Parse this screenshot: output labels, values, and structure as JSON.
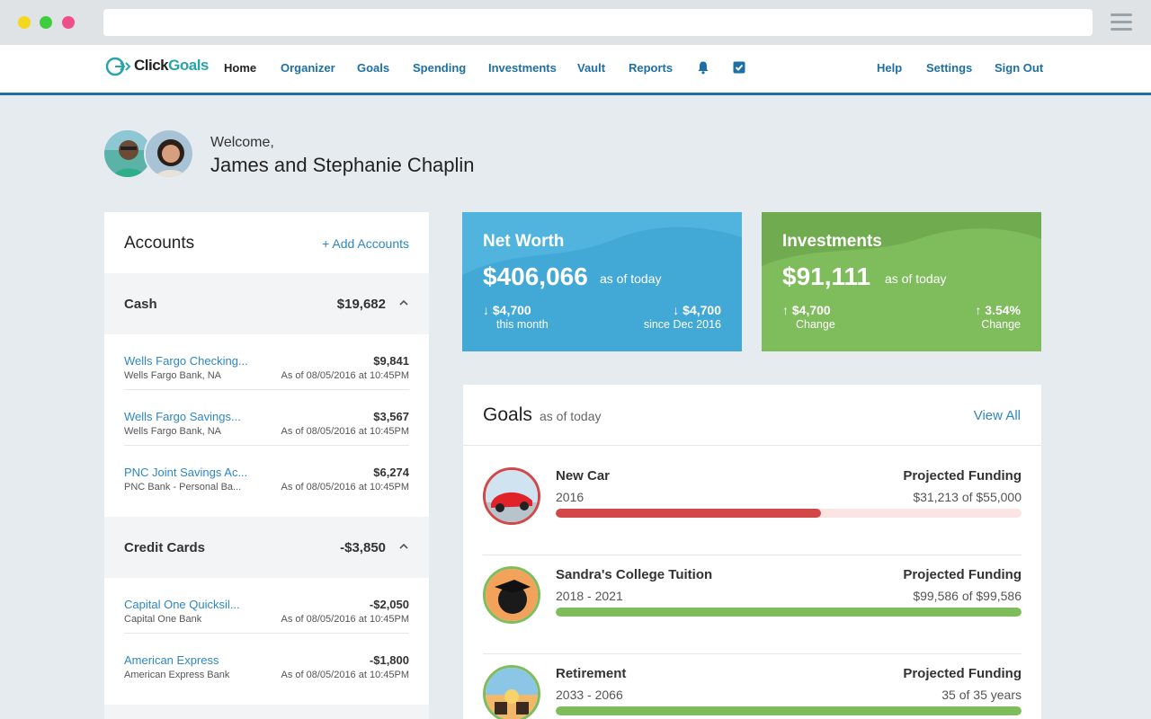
{
  "nav": {
    "brand": "ClickGoals",
    "brand_prefix": "Click",
    "brand_suffix": "Goals",
    "links": [
      "Home",
      "Organizer",
      "Goals",
      "Spending",
      "Investments",
      "Vault",
      "Reports"
    ],
    "right_links": [
      "Help",
      "Settings",
      "Sign Out"
    ],
    "icons": [
      "bell-icon",
      "checkbox-icon"
    ]
  },
  "welcome": {
    "greeting": "Welcome,",
    "name": "James and Stephanie Chaplin"
  },
  "accounts": {
    "title": "Accounts",
    "add_label": "+ Add Accounts",
    "groups": [
      {
        "label": "Cash",
        "total": "$19,682",
        "items": [
          {
            "name": "Wells Fargo Checking...",
            "bank": "Wells Fargo Bank, NA",
            "value": "$9,841",
            "date": "As of 08/05/2016 at 10:45PM"
          },
          {
            "name": "Wells Fargo Savings...",
            "bank": "Wells Fargo Bank, NA",
            "value": "$3,567",
            "date": "As of 08/05/2016 at 10:45PM"
          },
          {
            "name": "PNC Joint Savings Ac...",
            "bank": "PNC Bank - Personal Ba...",
            "value": "$6,274",
            "date": "As of 08/05/2016 at 10:45PM"
          }
        ]
      },
      {
        "label": "Credit Cards",
        "total": "-$3,850",
        "items": [
          {
            "name": "Capital One Quicksil...",
            "bank": "Capital One Bank",
            "value": "-$2,050",
            "date": "As of 08/05/2016 at 10:45PM"
          },
          {
            "name": "American Express",
            "bank": "American Express Bank",
            "value": "-$1,800",
            "date": "As of 08/05/2016 at 10:45PM"
          }
        ]
      }
    ]
  },
  "net_worth": {
    "title": "Net Worth",
    "value": "$406,066",
    "as_of": "as of today",
    "left_change": "$4,700",
    "left_sub": "this month",
    "right_change": "$4,700",
    "right_sub": "since Dec 2016",
    "color": "#42a8d6"
  },
  "investments": {
    "title": "Investments",
    "value": "$91,111",
    "as_of": "as of today",
    "left_change": "$4,700",
    "left_sub": "Change",
    "right_change": "3.54%",
    "right_sub": "Change",
    "color": "#7fbc5c"
  },
  "goals": {
    "title": "Goals",
    "subtitle": "as of today",
    "view_all": "View All",
    "items": [
      {
        "name": "New Car",
        "years": "2016",
        "label": "Projected Funding",
        "value": "$31,213 of $55,000",
        "progress": 0.57,
        "color": "#d24848",
        "ring": "#d24848"
      },
      {
        "name": "Sandra's College Tuition",
        "years": "2018 - 2021",
        "label": "Projected Funding",
        "value": "$99,586 of $99,586",
        "progress": 1.0,
        "color": "#7fbc5c",
        "ring": "#7fbc5c"
      },
      {
        "name": "Retirement",
        "years": "2033 - 2066",
        "label": "Projected Funding",
        "value": "35 of 35 years",
        "progress": 1.0,
        "color": "#7fbc5c",
        "ring": "#7fbc5c"
      }
    ]
  }
}
